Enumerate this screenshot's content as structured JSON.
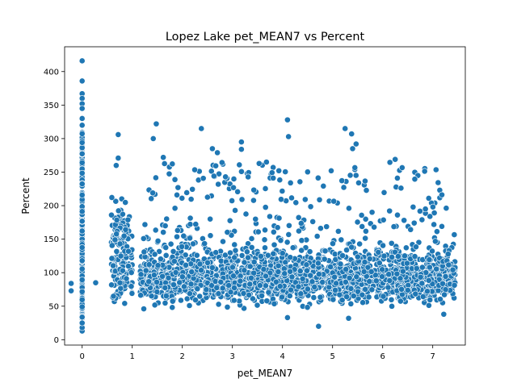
{
  "chart_data": {
    "type": "scatter",
    "title": "Lopez Lake pet_MEAN7 vs Percent",
    "xlabel": "pet_MEAN7",
    "ylabel": "Percent",
    "xlim": [
      -0.35,
      7.65
    ],
    "ylim": [
      -8,
      437
    ],
    "xticks": [
      0,
      1,
      2,
      3,
      4,
      5,
      6,
      7
    ],
    "yticks": [
      0,
      50,
      100,
      150,
      200,
      250,
      300,
      350,
      400
    ],
    "grid": false,
    "legend": "none",
    "marker_color": "#1f77b4",
    "marker_edge": "#ffffff",
    "outliers": [
      {
        "x": 0,
        "y": 416
      },
      {
        "x": 0,
        "y": 386
      },
      {
        "x": 0,
        "y": 367
      },
      {
        "x": 0,
        "y": 360
      },
      {
        "x": 0,
        "y": 352
      },
      {
        "x": 0,
        "y": 345
      },
      {
        "x": 0,
        "y": 330
      },
      {
        "x": 0,
        "y": 320
      },
      {
        "x": 0,
        "y": 13
      },
      {
        "x": 0,
        "y": 18
      },
      {
        "x": 0,
        "y": 25
      },
      {
        "x": -0.22,
        "y": 84
      },
      {
        "x": -0.22,
        "y": 73
      },
      {
        "x": 0.27,
        "y": 85
      },
      {
        "x": 0.72,
        "y": 306
      },
      {
        "x": 0.72,
        "y": 271
      },
      {
        "x": 0.68,
        "y": 260
      },
      {
        "x": 1.48,
        "y": 322
      },
      {
        "x": 1.42,
        "y": 300
      },
      {
        "x": 1.62,
        "y": 272
      },
      {
        "x": 2.38,
        "y": 315
      },
      {
        "x": 2.6,
        "y": 285
      },
      {
        "x": 2.7,
        "y": 279
      },
      {
        "x": 3.18,
        "y": 295
      },
      {
        "x": 3.18,
        "y": 284
      },
      {
        "x": 4.1,
        "y": 328
      },
      {
        "x": 4.12,
        "y": 303
      },
      {
        "x": 3.68,
        "y": 265
      },
      {
        "x": 5.25,
        "y": 315
      },
      {
        "x": 5.38,
        "y": 307
      },
      {
        "x": 5.4,
        "y": 285
      },
      {
        "x": 5.47,
        "y": 292
      },
      {
        "x": 6.25,
        "y": 269
      },
      {
        "x": 4.72,
        "y": 20
      },
      {
        "x": 4.1,
        "y": 33
      },
      {
        "x": 5.32,
        "y": 32
      },
      {
        "x": 6.92,
        "y": 211
      },
      {
        "x": 7.22,
        "y": 38
      }
    ]
  }
}
